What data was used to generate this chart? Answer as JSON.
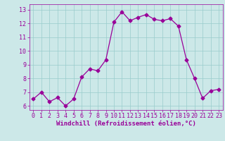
{
  "x": [
    0,
    1,
    2,
    3,
    4,
    5,
    6,
    7,
    8,
    9,
    10,
    11,
    12,
    13,
    14,
    15,
    16,
    17,
    18,
    19,
    20,
    21,
    22,
    23
  ],
  "y": [
    6.5,
    7.0,
    6.3,
    6.6,
    6.0,
    6.5,
    8.1,
    8.7,
    8.55,
    9.35,
    12.1,
    12.85,
    12.2,
    12.45,
    12.65,
    12.3,
    12.2,
    12.35,
    11.8,
    9.35,
    8.0,
    6.55,
    7.1,
    7.2
  ],
  "line_color": "#990099",
  "marker": "D",
  "marker_size": 2.5,
  "bg_color": "#cce8e8",
  "grid_color": "#99cccc",
  "xlabel": "Windchill (Refroidissement éolien,°C)",
  "xlabel_color": "#990099",
  "xlabel_fontsize": 6.5,
  "tick_color": "#990099",
  "tick_fontsize": 6,
  "ylim": [
    5.7,
    13.4
  ],
  "xlim": [
    -0.5,
    23.5
  ],
  "yticks": [
    6,
    7,
    8,
    9,
    10,
    11,
    12,
    13
  ],
  "xticks": [
    0,
    1,
    2,
    3,
    4,
    5,
    6,
    7,
    8,
    9,
    10,
    11,
    12,
    13,
    14,
    15,
    16,
    17,
    18,
    19,
    20,
    21,
    22,
    23
  ]
}
